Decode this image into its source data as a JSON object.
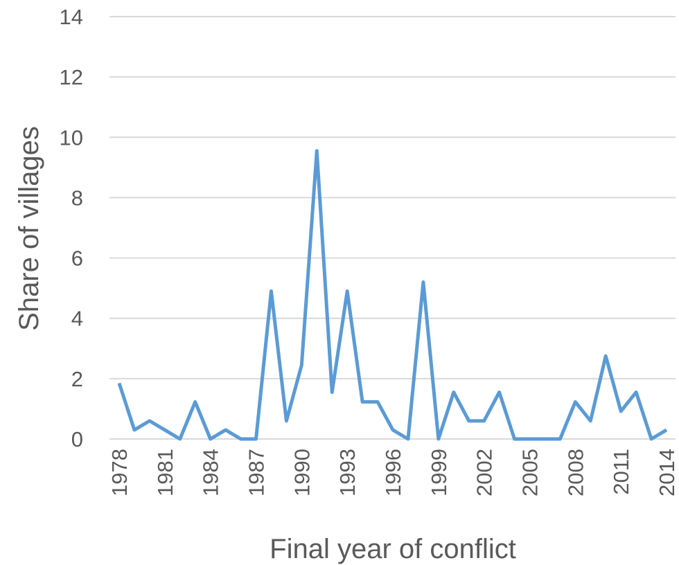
{
  "chart_data": {
    "type": "line",
    "x_label": "Final year of conflict",
    "y_label": "Share of villages",
    "x": [
      1978,
      1979,
      1980,
      1981,
      1982,
      1983,
      1984,
      1985,
      1986,
      1987,
      1988,
      1989,
      1990,
      1991,
      1992,
      1993,
      1994,
      1995,
      1996,
      1997,
      1998,
      1999,
      2000,
      2001,
      2002,
      2003,
      2004,
      2005,
      2006,
      2007,
      2008,
      2009,
      2010,
      2011,
      2012,
      2013,
      2014
    ],
    "values": [
      1.85,
      0.3,
      0.6,
      0.3,
      0,
      1.23,
      0,
      0.3,
      0,
      0,
      4.9,
      0.6,
      2.45,
      9.55,
      1.55,
      4.9,
      1.23,
      1.23,
      0.3,
      0,
      5.2,
      0,
      1.55,
      0.6,
      0.6,
      1.55,
      0,
      0,
      0,
      0,
      1.23,
      0.6,
      2.75,
      0.92,
      1.55,
      0,
      0.3
    ],
    "color": "#5b9bd5",
    "xlim": [
      1978,
      2014
    ],
    "xticks": [
      1978,
      1981,
      1984,
      1987,
      1990,
      1993,
      1996,
      1999,
      2002,
      2005,
      2008,
      2011,
      2014
    ],
    "ylim": [
      0,
      14
    ],
    "yticks": [
      0,
      2,
      4,
      6,
      8,
      10,
      12,
      14
    ],
    "grid": true
  }
}
